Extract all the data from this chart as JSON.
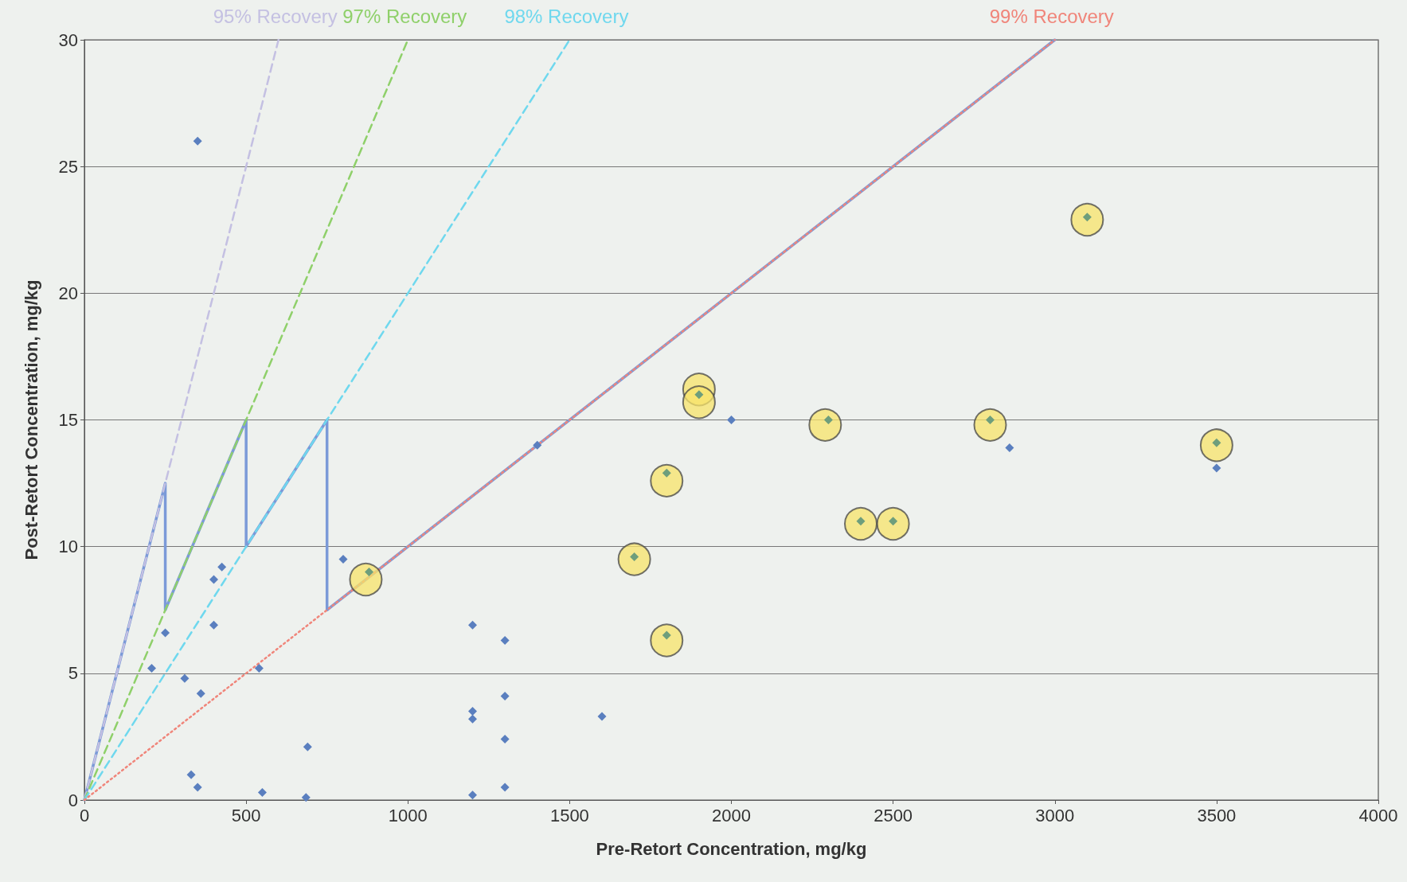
{
  "chart_data": {
    "type": "scatter",
    "xlabel": "Pre-Retort Concentration, mg/kg",
    "ylabel": "Post-Retort Concentration, mg/kg",
    "xlim": [
      0,
      4000
    ],
    "xticks": [
      0,
      500,
      1000,
      1500,
      2000,
      2500,
      3000,
      3500,
      4000
    ],
    "ylim": [
      0,
      30
    ],
    "yticks": [
      0,
      5,
      10,
      15,
      20,
      25,
      30
    ],
    "grid": "y",
    "legend": false,
    "series": [
      {
        "name": "95% Recovery",
        "type": "line",
        "line_style": "dashed",
        "marker": "none",
        "color": "#c4c0e2",
        "x": [
          0,
          600
        ],
        "values": [
          0,
          30
        ]
      },
      {
        "name": "97% Recovery",
        "type": "line",
        "line_style": "dashed",
        "marker": "none",
        "color": "#8fd06a",
        "x": [
          0,
          1000
        ],
        "values": [
          0,
          30
        ]
      },
      {
        "name": "98% Recovery",
        "type": "line",
        "line_style": "dashed",
        "marker": "none",
        "color": "#6fd8ee",
        "x": [
          0,
          1500
        ],
        "values": [
          0,
          30
        ]
      },
      {
        "name": "99% Recovery",
        "type": "line",
        "line_style": "dotted",
        "marker": "none",
        "color": "#f0857a",
        "x": [
          0,
          3000
        ],
        "values": [
          0,
          30
        ]
      },
      {
        "type": "line",
        "line_style": "solid",
        "marker": "none",
        "color": "#7b9ad8",
        "x": [
          0,
          250,
          250,
          500,
          500,
          750,
          750,
          3000
        ],
        "values": [
          0,
          12.5,
          7.5,
          15,
          10,
          15,
          7.5,
          30
        ]
      },
      {
        "type": "scatter",
        "marker": "circle",
        "color": "#f7e36a",
        "x": [
          870,
          1700,
          1800,
          1800,
          1900,
          1900,
          2290,
          2400,
          2500,
          2800,
          3100,
          3500
        ],
        "values": [
          8.7,
          9.5,
          12.6,
          6.3,
          16.2,
          15.7,
          14.8,
          10.9,
          10.9,
          14.8,
          22.9,
          14.0
        ]
      },
      {
        "type": "scatter",
        "marker": "diamond",
        "color": "#6e9e7c",
        "x": [
          880,
          1700,
          1800,
          1800,
          1900,
          2300,
          2400,
          2500,
          2800,
          3100,
          3500
        ],
        "values": [
          9.0,
          9.6,
          12.9,
          6.5,
          16.0,
          15.0,
          11.0,
          11.0,
          15.0,
          23.0,
          14.1
        ]
      },
      {
        "type": "scatter",
        "marker": "diamond",
        "color": "#5a7fbf",
        "x": [
          350,
          800,
          425,
          400,
          400,
          250,
          208,
          540,
          310,
          360,
          330,
          350,
          550,
          690,
          685,
          1200,
          1200,
          1200,
          1200,
          1300,
          1300,
          1300,
          1300,
          1600,
          1400,
          2000,
          2860,
          3500
        ],
        "values": [
          26.0,
          9.5,
          9.2,
          8.7,
          6.9,
          6.6,
          5.2,
          5.2,
          4.8,
          4.2,
          1.0,
          0.5,
          0.3,
          2.1,
          0.1,
          6.9,
          3.5,
          3.2,
          0.2,
          6.3,
          4.1,
          2.4,
          0.5,
          3.3,
          14.0,
          15.0,
          13.9,
          13.1
        ]
      }
    ]
  }
}
